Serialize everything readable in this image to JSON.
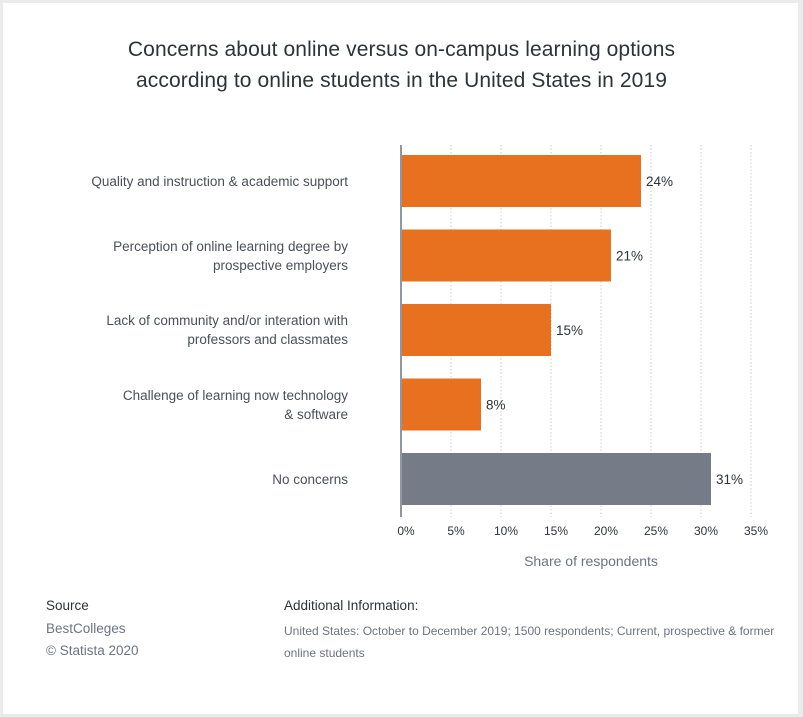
{
  "chart_data": {
    "type": "bar",
    "orientation": "horizontal",
    "title": "Concerns about online versus on-campus learning options according to online students in the United States in 2019",
    "title_lines": [
      "Concerns about online versus on-campus learning options",
      "according to online students in the United States in 2019"
    ],
    "categories": [
      "Quality and instruction & academic support",
      "Perception of online learning degree by\nprospective employers",
      "Lack of community and/or interation with\nprofessors and classmates",
      "Challenge of learning now technology\n& software",
      "No concerns"
    ],
    "values": [
      24,
      21,
      15,
      8,
      31
    ],
    "value_labels": [
      "24%",
      "21%",
      "15%",
      "8%",
      "31%"
    ],
    "bar_colors": [
      "#e8711f",
      "#e8711f",
      "#e8711f",
      "#e8711f",
      "#767b88"
    ],
    "xlabel": "Share of respondents",
    "ylabel": "",
    "xlim": [
      0,
      35
    ],
    "xticks": [
      0,
      5,
      10,
      15,
      20,
      25,
      30,
      35
    ],
    "xtick_labels": [
      "0%",
      "5%",
      "10%",
      "15%",
      "20%",
      "25%",
      "30%",
      "35%"
    ],
    "grid": true,
    "legend": "none"
  },
  "footer": {
    "source_heading": "Source",
    "source_name": "BestColleges",
    "copyright": "© Statista 2020",
    "additional_heading": "Additional Information:",
    "additional_text": "United States: October to December 2019; 1500 respondents; Current, prospective & former online students"
  },
  "colors": {
    "accent": "#e8711f",
    "neutral_bar": "#767b88",
    "text_dark": "#2f3238",
    "text_muted": "#6e7380"
  }
}
